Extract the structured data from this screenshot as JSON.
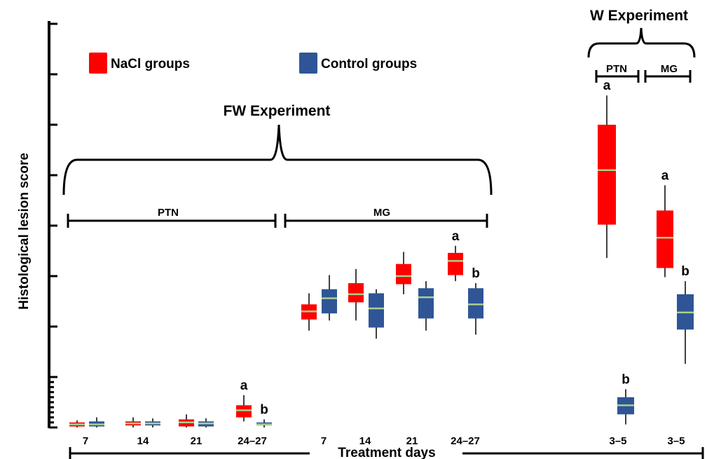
{
  "chart_data": {
    "type": "boxplot",
    "title": "",
    "ylabel": "Histological lesion score",
    "xlabel": "Treatment days",
    "ylim": [
      0,
      4
    ],
    "y_major_ticks": [
      0,
      0.5,
      1,
      1.5,
      2,
      2.5,
      3,
      3.5,
      4
    ],
    "legend": {
      "position": "top-left",
      "entries": [
        {
          "name": "NaCl groups",
          "color": "#ff0000"
        },
        {
          "name": "Control groups",
          "color": "#2f5597"
        }
      ]
    },
    "colors": {
      "nacl": "#ff0000",
      "control": "#2f5597",
      "median": "#a9d18e"
    },
    "experiments": [
      {
        "label": "FW Experiment",
        "tissues": [
          {
            "label": "PTN",
            "day_labels": [
              "7",
              "14",
              "21",
              "24–27"
            ]
          },
          {
            "label": "MG",
            "day_labels": [
              "7",
              "14",
              "21",
              "24–27"
            ]
          }
        ]
      },
      {
        "label": "W Experiment",
        "tissues": [
          {
            "label": "PTN",
            "day_labels": [
              "3–5"
            ]
          },
          {
            "label": "MG",
            "day_labels": [
              "3–5"
            ]
          }
        ]
      }
    ],
    "boxes": [
      {
        "experiment": "FW",
        "tissue": "PTN",
        "day": "7",
        "group": "NaCl",
        "min": 0.0,
        "q1": 0.01,
        "median": 0.03,
        "q3": 0.05,
        "max": 0.07,
        "letter": ""
      },
      {
        "experiment": "FW",
        "tissue": "PTN",
        "day": "7",
        "group": "Control",
        "min": 0.0,
        "q1": 0.01,
        "median": 0.03,
        "q3": 0.06,
        "max": 0.1,
        "letter": ""
      },
      {
        "experiment": "FW",
        "tissue": "PTN",
        "day": "14",
        "group": "NaCl",
        "min": 0.0,
        "q1": 0.02,
        "median": 0.04,
        "q3": 0.06,
        "max": 0.1,
        "letter": ""
      },
      {
        "experiment": "FW",
        "tissue": "PTN",
        "day": "14",
        "group": "Control",
        "min": 0.0,
        "q1": 0.02,
        "median": 0.04,
        "q3": 0.06,
        "max": 0.09,
        "letter": ""
      },
      {
        "experiment": "FW",
        "tissue": "PTN",
        "day": "21",
        "group": "NaCl",
        "min": 0.0,
        "q1": 0.01,
        "median": 0.05,
        "q3": 0.08,
        "max": 0.13,
        "letter": ""
      },
      {
        "experiment": "FW",
        "tissue": "PTN",
        "day": "21",
        "group": "Control",
        "min": 0.0,
        "q1": 0.01,
        "median": 0.04,
        "q3": 0.06,
        "max": 0.09,
        "letter": ""
      },
      {
        "experiment": "FW",
        "tissue": "PTN",
        "day": "24–27",
        "group": "NaCl",
        "min": 0.06,
        "q1": 0.1,
        "median": 0.17,
        "q3": 0.22,
        "max": 0.32,
        "letter": "a"
      },
      {
        "experiment": "FW",
        "tissue": "PTN",
        "day": "24–27",
        "group": "Control",
        "min": 0.0,
        "q1": 0.02,
        "median": 0.03,
        "q3": 0.05,
        "max": 0.08,
        "letter": "b"
      },
      {
        "experiment": "FW",
        "tissue": "MG",
        "day": "7",
        "group": "NaCl",
        "min": 0.96,
        "q1": 1.07,
        "median": 1.15,
        "q3": 1.22,
        "max": 1.33,
        "letter": ""
      },
      {
        "experiment": "FW",
        "tissue": "MG",
        "day": "7",
        "group": "Control",
        "min": 1.06,
        "q1": 1.13,
        "median": 1.28,
        "q3": 1.37,
        "max": 1.51,
        "letter": ""
      },
      {
        "experiment": "FW",
        "tissue": "MG",
        "day": "14",
        "group": "NaCl",
        "min": 1.06,
        "q1": 1.24,
        "median": 1.32,
        "q3": 1.43,
        "max": 1.57,
        "letter": ""
      },
      {
        "experiment": "FW",
        "tissue": "MG",
        "day": "14",
        "group": "Control",
        "min": 0.88,
        "q1": 0.99,
        "median": 1.18,
        "q3": 1.33,
        "max": 1.37,
        "letter": ""
      },
      {
        "experiment": "FW",
        "tissue": "MG",
        "day": "21",
        "group": "NaCl",
        "min": 1.32,
        "q1": 1.42,
        "median": 1.5,
        "q3": 1.62,
        "max": 1.74,
        "letter": ""
      },
      {
        "experiment": "FW",
        "tissue": "MG",
        "day": "21",
        "group": "Control",
        "min": 0.96,
        "q1": 1.08,
        "median": 1.29,
        "q3": 1.38,
        "max": 1.45,
        "letter": ""
      },
      {
        "experiment": "FW",
        "tissue": "MG",
        "day": "24–27",
        "group": "NaCl",
        "min": 1.45,
        "q1": 1.51,
        "median": 1.65,
        "q3": 1.73,
        "max": 1.8,
        "letter": "a"
      },
      {
        "experiment": "FW",
        "tissue": "MG",
        "day": "24–27",
        "group": "Control",
        "min": 0.92,
        "q1": 1.08,
        "median": 1.22,
        "q3": 1.38,
        "max": 1.43,
        "letter": "b"
      },
      {
        "experiment": "W",
        "tissue": "PTN",
        "day": "3–5",
        "group": "NaCl",
        "min": 1.68,
        "q1": 2.01,
        "median": 2.55,
        "q3": 3.0,
        "max": 3.29,
        "letter": "a"
      },
      {
        "experiment": "W",
        "tissue": "PTN",
        "day": "3–5",
        "group": "Control",
        "min": 0.03,
        "q1": 0.13,
        "median": 0.22,
        "q3": 0.3,
        "max": 0.38,
        "letter": "b"
      },
      {
        "experiment": "W",
        "tissue": "MG",
        "day": "3–5",
        "group": "NaCl",
        "min": 1.49,
        "q1": 1.58,
        "median": 1.88,
        "q3": 2.15,
        "max": 2.4,
        "letter": "a"
      },
      {
        "experiment": "W",
        "tissue": "MG",
        "day": "3–5",
        "group": "Control",
        "min": 0.63,
        "q1": 0.97,
        "median": 1.14,
        "q3": 1.32,
        "max": 1.45,
        "letter": "b"
      }
    ]
  }
}
